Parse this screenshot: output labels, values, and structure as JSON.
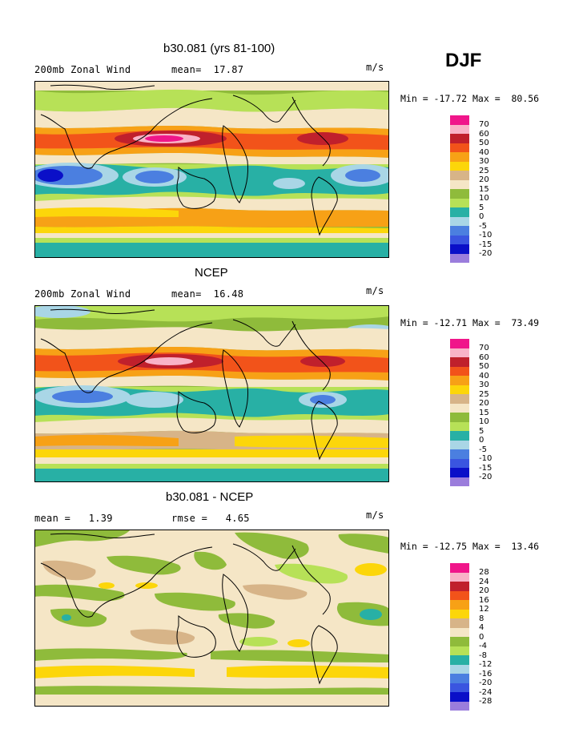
{
  "season": "DJF",
  "palette": {
    "magenta": "#f0168a",
    "pink": "#f9b3c7",
    "dark_red": "#c0202c",
    "red_orange": "#f2531a",
    "orange": "#f7a116",
    "yellow": "#fcd60a",
    "tan": "#d7b488",
    "cream": "#f5e6c6",
    "light_green": "#b7e157",
    "green": "#8fbb3b",
    "teal": "#28b0a5",
    "light_blue": "#a9d6e6",
    "blue": "#4b7fe0",
    "mid_blue": "#3a55e0",
    "dark_blue": "#0a0fc8",
    "purple": "#9b7ddc"
  },
  "panels": [
    {
      "title": "b30.081 (yrs 81-100)",
      "left_label": "200mb Zonal Wind",
      "mid_label": "mean=  17.87",
      "units": "m/s",
      "minmax": "Min = -17.72 Max =  80.56",
      "colorbar_labels": [
        "70",
        "60",
        "50",
        "40",
        "30",
        "25",
        "20",
        "15",
        "10",
        "5",
        "0",
        "-5",
        "-10",
        "-15",
        "-20"
      ]
    },
    {
      "title": "NCEP",
      "left_label": "200mb Zonal Wind",
      "mid_label": "mean=  16.48",
      "units": "m/s",
      "minmax": "Min = -12.71 Max =  73.49",
      "colorbar_labels": [
        "70",
        "60",
        "50",
        "40",
        "30",
        "25",
        "20",
        "15",
        "10",
        "5",
        "0",
        "-5",
        "-10",
        "-15",
        "-20"
      ]
    },
    {
      "title": "b30.081 - NCEP",
      "left_label": "mean =   1.39",
      "mid_label": "rmse =   4.65",
      "units": "m/s",
      "minmax": "Min = -12.75 Max =  13.46",
      "colorbar_labels": [
        "28",
        "24",
        "20",
        "16",
        "12",
        "8",
        "4",
        "0",
        "-4",
        "-8",
        "-12",
        "-16",
        "-20",
        "-24",
        "-28"
      ]
    }
  ]
}
